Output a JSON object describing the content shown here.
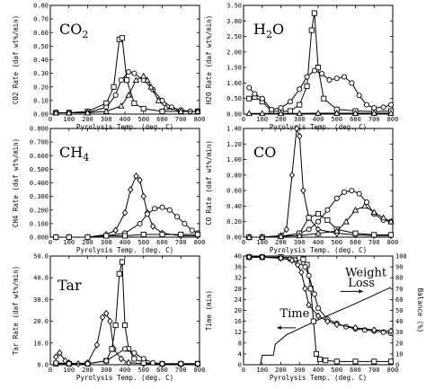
{
  "chart_data": [
    {
      "type": "line",
      "title": "CO",
      "title_sub": "2",
      "xlabel": "Pyrolysis Temp. (deg. C)",
      "ylabel": "CO2 Rate (daf wt%/min)",
      "xlim": [
        0,
        800
      ],
      "ylim": [
        0,
        0.8
      ],
      "xticks": [
        "0",
        "100",
        "200",
        "300",
        "400",
        "500",
        "600",
        "700",
        "800"
      ],
      "yticks": [
        "0.00",
        "0.10",
        "0.20",
        "0.30",
        "0.40",
        "0.50",
        "0.60",
        "0.70",
        "0.80"
      ],
      "series": [
        {
          "marker": "square",
          "x": [
            30,
            100,
            200,
            300,
            340,
            370,
            385,
            410,
            450,
            500,
            600,
            700,
            790
          ],
          "y": [
            0.01,
            0.01,
            0.02,
            0.08,
            0.2,
            0.55,
            0.56,
            0.25,
            0.08,
            0.04,
            0.02,
            0.02,
            0.02
          ]
        },
        {
          "marker": "circle",
          "x": [
            30,
            100,
            200,
            300,
            350,
            380,
            420,
            450,
            500,
            550,
            600,
            650,
            700,
            750,
            790
          ],
          "y": [
            0.01,
            0.01,
            0.01,
            0.05,
            0.14,
            0.25,
            0.31,
            0.3,
            0.25,
            0.18,
            0.1,
            0.05,
            0.03,
            0.02,
            0.02
          ]
        },
        {
          "marker": "triangle",
          "x": [
            30,
            100,
            200,
            300,
            380,
            420,
            460,
            500,
            520,
            540,
            580,
            620,
            700,
            790
          ],
          "y": [
            0.01,
            0.01,
            0.01,
            0.02,
            0.06,
            0.14,
            0.25,
            0.28,
            0.25,
            0.2,
            0.1,
            0.05,
            0.02,
            0.02
          ]
        }
      ]
    },
    {
      "type": "line",
      "title": "H",
      "title_sub": "2",
      "title_rest": "O",
      "xlabel": "Pyrolysis Temp. (deg. C)",
      "ylabel": "H2O Rate (daf wt%/min)",
      "xlim": [
        0,
        800
      ],
      "ylim": [
        0,
        3.5
      ],
      "xticks": [
        "0",
        "100",
        "200",
        "300",
        "400",
        "500",
        "600",
        "700",
        "800"
      ],
      "yticks": [
        "0.00",
        "0.50",
        "1.00",
        "1.50",
        "2.00",
        "2.50",
        "3.00",
        "3.50"
      ],
      "series": [
        {
          "marker": "square",
          "x": [
            30,
            60,
            100,
            150,
            200,
            250,
            300,
            340,
            365,
            380,
            400,
            430,
            500,
            600,
            700,
            790
          ],
          "y": [
            0.5,
            0.55,
            0.4,
            0.1,
            0.08,
            0.1,
            0.3,
            0.9,
            2.7,
            3.25,
            1.5,
            0.5,
            0.15,
            0.1,
            0.08,
            0.1
          ]
        },
        {
          "marker": "circle",
          "x": [
            30,
            60,
            100,
            150,
            200,
            250,
            300,
            340,
            380,
            420,
            460,
            500,
            540,
            580,
            620,
            660,
            700,
            750,
            790
          ],
          "y": [
            0.85,
            0.65,
            0.5,
            0.15,
            0.2,
            0.4,
            0.8,
            1.2,
            1.4,
            1.3,
            1.1,
            1.15,
            1.2,
            1.0,
            0.6,
            0.3,
            0.2,
            0.22,
            0.3
          ]
        },
        {
          "marker": "triangle",
          "x": [
            30,
            100,
            200,
            300,
            400,
            500,
            600,
            700,
            790
          ],
          "y": [
            0.02,
            0.02,
            0.02,
            0.02,
            0.03,
            0.03,
            0.03,
            0.03,
            0.03
          ]
        }
      ]
    },
    {
      "type": "line",
      "title": "CH",
      "title_sub": "4",
      "xlabel": "Pyrolysis Temp. (deg. C)",
      "ylabel": "CH4 Rate (daf wt%/min)",
      "xlim": [
        0,
        800
      ],
      "ylim": [
        0,
        0.8
      ],
      "xticks": [
        "0",
        "100",
        "200",
        "300",
        "400",
        "500",
        "600",
        "700",
        "800"
      ],
      "yticks": [
        "0.000",
        "0.100",
        "0.200",
        "0.300",
        "0.400",
        "0.500",
        "0.600",
        "0.700",
        "0.800"
      ],
      "series": [
        {
          "marker": "diamond",
          "x": [
            30,
            100,
            200,
            300,
            350,
            400,
            430,
            460,
            480,
            500,
            520,
            550,
            600,
            700,
            790
          ],
          "y": [
            0.0,
            0.0,
            0.0,
            0.02,
            0.05,
            0.18,
            0.35,
            0.45,
            0.42,
            0.3,
            0.18,
            0.08,
            0.03,
            0.01,
            0.01
          ]
        },
        {
          "marker": "circle",
          "x": [
            30,
            100,
            200,
            300,
            400,
            480,
            520,
            560,
            600,
            640,
            680,
            720,
            760,
            790
          ],
          "y": [
            0.0,
            0.0,
            0.0,
            0.01,
            0.03,
            0.1,
            0.17,
            0.21,
            0.22,
            0.2,
            0.15,
            0.1,
            0.05,
            0.03
          ]
        },
        {
          "marker": "square",
          "x": [
            30,
            100,
            200,
            300,
            400,
            500,
            600,
            700,
            790
          ],
          "y": [
            0.0,
            0.0,
            0.0,
            0.01,
            0.01,
            0.02,
            0.02,
            0.02,
            0.02
          ]
        }
      ]
    },
    {
      "type": "line",
      "title": "CO",
      "xlabel": "Pyrolysis Temp. (deg. C)",
      "ylabel": "CO Rate (daf wt%/min)",
      "xlim": [
        0,
        800
      ],
      "ylim": [
        0,
        1.4
      ],
      "xticks": [
        "0",
        "100",
        "200",
        "300",
        "400",
        "500",
        "600",
        "700",
        "800"
      ],
      "yticks": [
        "0.00",
        "0.20",
        "0.40",
        "0.60",
        "0.80",
        "1.00",
        "1.20",
        "1.40"
      ],
      "series": [
        {
          "marker": "diamond",
          "x": [
            30,
            100,
            200,
            230,
            260,
            285,
            300,
            320,
            350,
            400,
            500,
            600,
            700,
            790
          ],
          "y": [
            0.0,
            0.0,
            0.02,
            0.1,
            0.8,
            1.4,
            1.3,
            0.6,
            0.25,
            0.1,
            0.05,
            0.03,
            0.02,
            0.02
          ]
        },
        {
          "marker": "circle",
          "x": [
            30,
            100,
            200,
            300,
            350,
            400,
            450,
            500,
            540,
            580,
            620,
            660,
            700,
            750,
            790
          ],
          "y": [
            0.0,
            0.0,
            0.01,
            0.05,
            0.1,
            0.2,
            0.35,
            0.5,
            0.58,
            0.6,
            0.56,
            0.45,
            0.3,
            0.22,
            0.2
          ]
        },
        {
          "marker": "square",
          "x": [
            30,
            100,
            200,
            300,
            350,
            400,
            450,
            500,
            600,
            700,
            790
          ],
          "y": [
            0.0,
            0.0,
            0.01,
            0.05,
            0.25,
            0.3,
            0.22,
            0.1,
            0.05,
            0.03,
            0.03
          ]
        },
        {
          "marker": "triangle",
          "x": [
            30,
            100,
            200,
            300,
            400,
            500,
            550,
            600,
            650,
            700,
            750,
            790
          ],
          "y": [
            0.0,
            0.0,
            0.01,
            0.02,
            0.05,
            0.08,
            0.2,
            0.35,
            0.4,
            0.32,
            0.25,
            0.2
          ]
        }
      ]
    },
    {
      "type": "line",
      "title": "Tar",
      "xlabel": "Pyrolysis Temp. (deg. C)",
      "ylabel": "Tar Rate (daf wt%/min)",
      "xlim": [
        0,
        800
      ],
      "ylim": [
        0,
        55
      ],
      "xticks": [
        "0",
        "100",
        "200",
        "300",
        "400",
        "500",
        "600",
        "700",
        "800"
      ],
      "yticks": [
        "0.0",
        "10.0",
        "20.0",
        "30.0",
        "40.0",
        "50.0"
      ],
      "series": [
        {
          "marker": "diamond",
          "x": [
            30,
            50,
            80,
            100,
            150,
            200,
            250,
            280,
            300,
            320,
            340,
            380,
            420,
            500,
            600,
            700,
            790
          ],
          "y": [
            4,
            6,
            2,
            1,
            0.5,
            1,
            10,
            24,
            26,
            22,
            8,
            3,
            1,
            0.5,
            0.3,
            0.3,
            0.3
          ]
        },
        {
          "marker": "square",
          "x": [
            30,
            100,
            200,
            300,
            330,
            350,
            370,
            385,
            400,
            420,
            450,
            500,
            600,
            700,
            790
          ],
          "y": [
            0.5,
            0.5,
            0.5,
            2,
            8,
            20,
            46,
            52,
            20,
            8,
            3,
            1,
            0.5,
            0.5,
            0.5
          ]
        },
        {
          "marker": "circle",
          "x": [
            30,
            100,
            200,
            300,
            400,
            450,
            500,
            550,
            600,
            700,
            790
          ],
          "y": [
            1,
            0.5,
            0.5,
            2,
            8,
            6,
            3,
            1,
            0.5,
            0.5,
            0.5
          ]
        }
      ]
    },
    {
      "type": "line",
      "xlabel": "Pyrolysis Temp. (deg. C)",
      "ylabel": "Time (min)",
      "ylabel_right": "Balance (%)",
      "xlim": [
        0,
        800
      ],
      "ylim": [
        0,
        40
      ],
      "ylim_right": [
        0,
        100
      ],
      "xticks": [
        "0",
        "100",
        "200",
        "300",
        "400",
        "500",
        "600",
        "700",
        "800"
      ],
      "yticks": [
        "0",
        "4",
        "8",
        "12",
        "16",
        "20",
        "24",
        "28",
        "32",
        "36",
        "40"
      ],
      "yticks_right": [
        "0",
        "10",
        "20",
        "30",
        "40",
        "50",
        "60",
        "70",
        "80",
        "90",
        "100"
      ],
      "annotations": [
        {
          "text": "Time",
          "x": 195,
          "y": 17.5
        },
        {
          "text": "Weight",
          "x": 545,
          "y": 32.5
        },
        {
          "text": "Loss",
          "x": 560,
          "y": 28.8
        }
      ],
      "series": [
        {
          "name": "Time",
          "axis": "left",
          "marker": "none",
          "x": [
            0,
            90,
            100,
            160,
            170,
            230,
            400,
            600,
            790
          ],
          "y": [
            0,
            0,
            3.5,
            3.5,
            7.5,
            11,
            16.5,
            22.5,
            28.5
          ]
        },
        {
          "name": "Weight Loss (square)",
          "axis": "right",
          "marker": "square",
          "x": [
            30,
            100,
            200,
            300,
            320,
            340,
            360,
            375,
            390,
            410,
            440,
            500,
            600,
            700,
            790
          ],
          "y": [
            99,
            99,
            99,
            98,
            97,
            92,
            70,
            40,
            10,
            5,
            4,
            3,
            3,
            3,
            3
          ]
        },
        {
          "name": "Weight Loss (circle)",
          "axis": "right",
          "marker": "circle",
          "x": [
            30,
            100,
            200,
            250,
            300,
            330,
            350,
            380,
            400,
            450,
            500,
            550,
            600,
            650,
            700,
            750,
            790
          ],
          "y": [
            99,
            99,
            98,
            97,
            94,
            90,
            82,
            65,
            52,
            42,
            38,
            35,
            33,
            32,
            31,
            30,
            29
          ]
        },
        {
          "name": "Weight Loss (diamond)",
          "axis": "right",
          "marker": "diamond",
          "x": [
            30,
            100,
            200,
            260,
            290,
            310,
            330,
            350,
            400,
            450,
            500,
            600,
            700,
            790
          ],
          "y": [
            99,
            99,
            98,
            96,
            92,
            85,
            70,
            55,
            45,
            40,
            37,
            34,
            32,
            31
          ]
        }
      ]
    }
  ]
}
